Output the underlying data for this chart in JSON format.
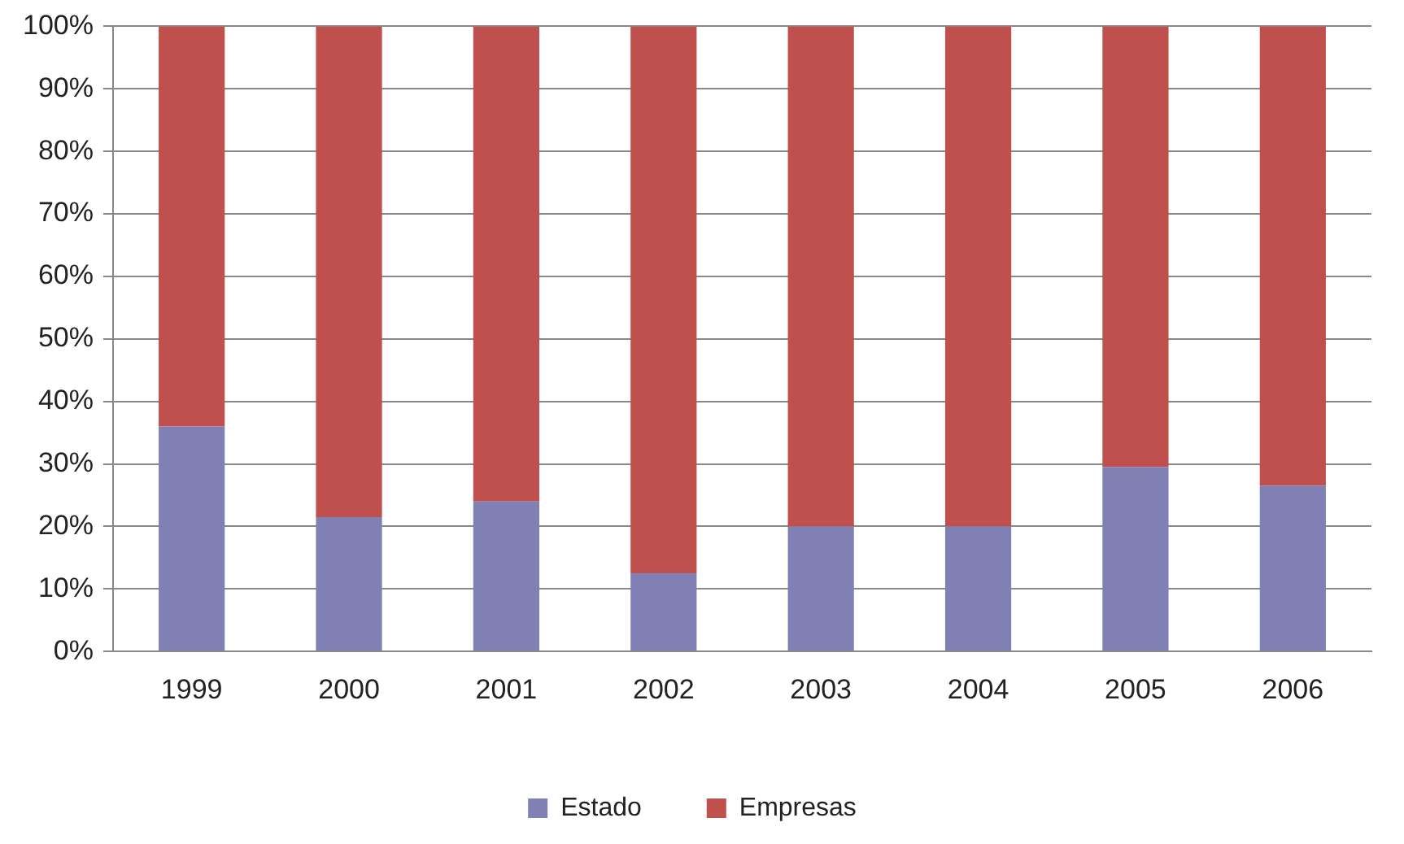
{
  "chart_data": {
    "type": "bar",
    "stacked": true,
    "categories": [
      "1999",
      "2000",
      "2001",
      "2002",
      "2003",
      "2004",
      "2005",
      "2006"
    ],
    "series": [
      {
        "name": "Estado",
        "color": "#8080b4",
        "values": [
          36,
          21.5,
          24,
          12.5,
          20,
          20,
          29.5,
          26.5
        ]
      },
      {
        "name": "Empresas",
        "color": "#c0504d",
        "values": [
          64,
          78.5,
          76,
          87.5,
          80,
          80,
          70.5,
          73.5
        ]
      }
    ],
    "ylim": [
      0,
      100
    ],
    "yticks": [
      {
        "value": 0,
        "label": "0%"
      },
      {
        "value": 10,
        "label": "10%"
      },
      {
        "value": 20,
        "label": "20%"
      },
      {
        "value": 30,
        "label": "30%"
      },
      {
        "value": 40,
        "label": "40%"
      },
      {
        "value": 50,
        "label": "50%"
      },
      {
        "value": 60,
        "label": "60%"
      },
      {
        "value": 70,
        "label": "70%"
      },
      {
        "value": 80,
        "label": "80%"
      },
      {
        "value": 90,
        "label": "90%"
      },
      {
        "value": 100,
        "label": "100%"
      }
    ],
    "grid": "y",
    "legend": "bottom"
  }
}
